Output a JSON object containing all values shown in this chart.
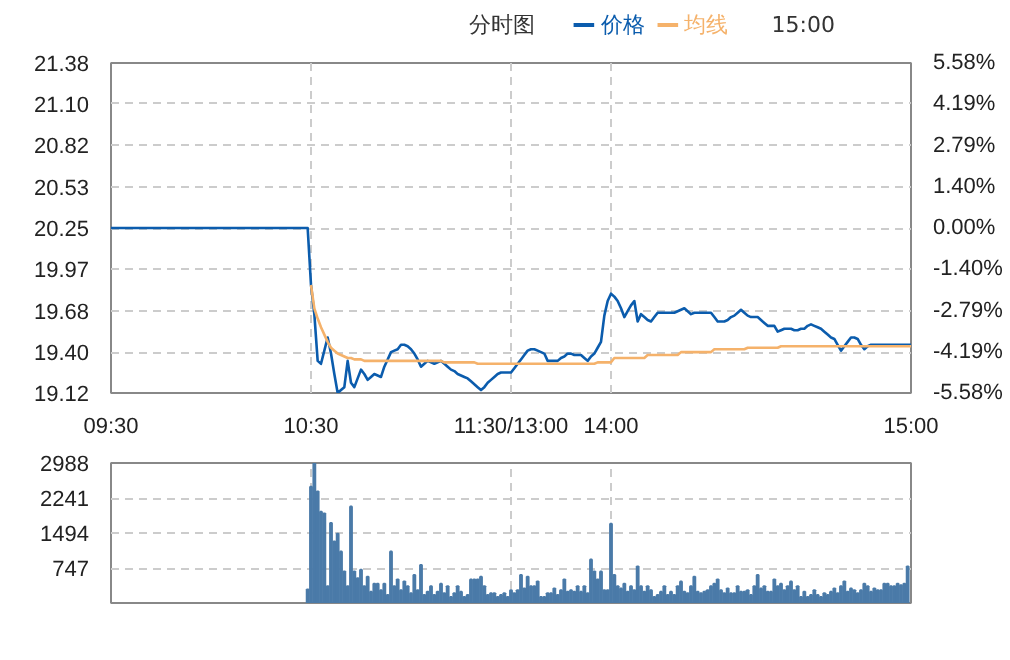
{
  "chart_data": [
    {
      "type": "line",
      "title": "分时图",
      "annotations": [
        "15:00"
      ],
      "legend": "top",
      "grid": true,
      "categories": [
        "09:30",
        null,
        null,
        null,
        null,
        null,
        null,
        null,
        null,
        null,
        null,
        null,
        null,
        null,
        null,
        null,
        null,
        null,
        null,
        null,
        null,
        null,
        null,
        null,
        null,
        null,
        null,
        null,
        null,
        null,
        null,
        null,
        null,
        null,
        null,
        null,
        null,
        null,
        null,
        null,
        null,
        null,
        null,
        null,
        null,
        null,
        null,
        null,
        null,
        null,
        null,
        null,
        null,
        null,
        null,
        null,
        null,
        null,
        null,
        null,
        "10:30",
        null,
        null,
        null,
        null,
        null,
        null,
        null,
        null,
        null,
        null,
        null,
        null,
        null,
        null,
        null,
        null,
        null,
        null,
        null,
        null,
        null,
        null,
        null,
        null,
        null,
        null,
        null,
        null,
        null,
        null,
        null,
        null,
        null,
        null,
        null,
        null,
        null,
        null,
        null,
        null,
        null,
        null,
        null,
        null,
        null,
        null,
        null,
        null,
        null,
        null,
        null,
        null,
        null,
        null,
        null,
        null,
        null,
        null,
        null,
        "11:30/13:00",
        null,
        null,
        null,
        null,
        null,
        null,
        null,
        null,
        null,
        null,
        null,
        null,
        null,
        null,
        null,
        null,
        null,
        null,
        null,
        null,
        null,
        null,
        null,
        null,
        null,
        null,
        null,
        null,
        null,
        "14:00",
        null,
        null,
        null,
        null,
        null,
        null,
        null,
        null,
        null,
        null,
        null,
        null,
        null,
        null,
        null,
        null,
        null,
        null,
        null,
        null,
        null,
        null,
        null,
        null,
        null,
        null,
        null,
        null,
        null,
        null,
        null,
        null,
        null,
        null,
        null,
        null,
        null,
        null,
        null,
        null,
        null,
        null,
        null,
        null,
        null,
        null,
        null,
        null,
        null,
        null,
        null,
        null,
        null,
        null,
        null,
        null,
        null,
        null,
        null,
        null,
        null,
        null,
        null,
        null,
        null,
        null,
        null,
        null,
        null,
        null,
        null,
        null,
        null,
        null,
        null,
        null,
        null,
        null,
        null,
        null,
        null,
        null,
        null,
        null,
        null,
        null,
        null,
        null,
        null,
        "15:00"
      ],
      "ylim": [
        19.12,
        21.38
      ],
      "yticks": [
        {
          "value": 19.12,
          "label": "19.12"
        },
        {
          "value": 19.4,
          "label": "19.40"
        },
        19.68,
        19.97,
        20.25,
        20.53,
        20.82,
        {
          "value": 21.1,
          "label": "21.10"
        },
        21.38
      ],
      "y2lim": [
        -5.58,
        5.58
      ],
      "y2ticks": [
        {
          "value": -5.58,
          "label": "-5.58%"
        },
        {
          "value": -4.19,
          "label": "-4.19%"
        },
        {
          "value": -2.79,
          "label": "-2.79%"
        },
        {
          "value": -1.4,
          "label": "-1.40%"
        },
        {
          "value": 0,
          "label": "0.00%"
        },
        {
          "value": 1.4,
          "label": "1.40%"
        },
        {
          "value": 2.79,
          "label": "2.79%"
        },
        {
          "value": 4.19,
          "label": "4.19%"
        },
        {
          "value": 5.58,
          "label": "5.58%"
        }
      ],
      "series": [
        {
          "name": "价格",
          "color": "#0b5cad",
          "values": [
            20.25,
            20.25,
            20.25,
            20.25,
            20.25,
            20.25,
            20.25,
            20.25,
            20.25,
            20.25,
            20.25,
            20.25,
            20.25,
            20.25,
            20.25,
            20.25,
            20.25,
            20.25,
            20.25,
            20.25,
            20.25,
            20.25,
            20.25,
            20.25,
            20.25,
            20.25,
            20.25,
            20.25,
            20.25,
            20.25,
            20.25,
            20.25,
            20.25,
            20.25,
            20.25,
            20.25,
            20.25,
            20.25,
            20.25,
            20.25,
            20.25,
            20.25,
            20.25,
            20.25,
            20.25,
            20.25,
            20.25,
            20.25,
            20.25,
            20.25,
            20.25,
            20.25,
            20.25,
            20.25,
            20.25,
            20.25,
            20.25,
            20.25,
            20.25,
            20.25,
            19.86,
            19.66,
            19.34,
            19.32,
            19.41,
            19.5,
            19.39,
            19.25,
            19.12,
            19.14,
            19.16,
            19.34,
            19.19,
            19.16,
            19.22,
            19.28,
            19.25,
            19.21,
            19.23,
            19.25,
            19.24,
            19.23,
            19.3,
            19.35,
            19.4,
            19.41,
            19.42,
            19.45,
            19.45,
            19.44,
            19.42,
            19.39,
            19.35,
            19.3,
            19.32,
            19.34,
            19.33,
            19.32,
            19.33,
            19.34,
            19.32,
            19.3,
            19.28,
            19.27,
            19.25,
            19.24,
            19.23,
            19.22,
            19.2,
            19.18,
            19.16,
            19.14,
            19.16,
            19.19,
            19.21,
            19.23,
            19.25,
            19.26,
            19.26,
            19.26,
            19.26,
            19.29,
            19.32,
            19.35,
            19.38,
            19.41,
            19.42,
            19.42,
            19.41,
            19.4,
            19.39,
            19.34,
            19.34,
            19.34,
            19.34,
            19.36,
            19.37,
            19.39,
            19.39,
            19.38,
            19.38,
            19.38,
            19.36,
            19.34,
            19.37,
            19.39,
            19.43,
            19.47,
            19.65,
            19.75,
            19.8,
            19.78,
            19.75,
            19.7,
            19.64,
            19.68,
            19.72,
            19.75,
            19.61,
            19.66,
            19.64,
            19.62,
            19.61,
            19.64,
            19.67,
            19.67,
            19.67,
            19.67,
            19.67,
            19.67,
            19.68,
            19.69,
            19.7,
            19.68,
            19.66,
            19.67,
            19.67,
            19.67,
            19.67,
            19.67,
            19.67,
            19.64,
            19.61,
            19.61,
            19.61,
            19.62,
            19.64,
            19.65,
            19.67,
            19.69,
            19.67,
            19.65,
            19.64,
            19.64,
            19.64,
            19.62,
            19.6,
            19.58,
            19.58,
            19.58,
            19.54,
            19.55,
            19.56,
            19.56,
            19.56,
            19.55,
            19.55,
            19.56,
            19.56,
            19.58,
            19.59,
            19.58,
            19.57,
            19.56,
            19.54,
            19.52,
            19.5,
            19.49,
            19.45,
            19.41,
            19.44,
            19.47,
            19.5,
            19.5,
            19.49,
            19.45,
            19.42,
            19.44,
            19.45,
            19.45,
            19.45,
            19.45,
            19.45,
            19.45,
            19.45,
            19.45,
            19.45,
            19.45,
            19.45,
            19.45,
            19.45
          ]
        },
        {
          "name": "均线",
          "color": "#f5b26b",
          "values": [
            null,
            null,
            null,
            null,
            null,
            null,
            null,
            null,
            null,
            null,
            null,
            null,
            null,
            null,
            null,
            null,
            null,
            null,
            null,
            null,
            null,
            null,
            null,
            null,
            null,
            null,
            null,
            null,
            null,
            null,
            null,
            null,
            null,
            null,
            null,
            null,
            null,
            null,
            null,
            null,
            null,
            null,
            null,
            null,
            null,
            null,
            null,
            null,
            null,
            null,
            null,
            null,
            null,
            null,
            null,
            null,
            null,
            null,
            null,
            null,
            19.86,
            19.7,
            19.63,
            19.57,
            19.52,
            19.47,
            19.43,
            19.41,
            19.39,
            19.38,
            19.37,
            19.36,
            19.36,
            19.35,
            19.35,
            19.35,
            19.34,
            19.34,
            19.34,
            19.34,
            19.34,
            19.34,
            19.34,
            19.34,
            19.34,
            19.34,
            19.34,
            19.34,
            19.34,
            19.34,
            19.34,
            19.34,
            19.34,
            19.34,
            19.34,
            19.34,
            19.34,
            19.34,
            19.34,
            19.34,
            19.33,
            19.33,
            19.33,
            19.33,
            19.33,
            19.33,
            19.33,
            19.33,
            19.33,
            19.33,
            19.32,
            19.32,
            19.32,
            19.32,
            19.32,
            19.32,
            19.32,
            19.32,
            19.32,
            19.32,
            19.32,
            19.32,
            19.32,
            19.32,
            19.32,
            19.32,
            19.32,
            19.32,
            19.32,
            19.32,
            19.32,
            19.32,
            19.32,
            19.32,
            19.32,
            19.32,
            19.32,
            19.32,
            19.32,
            19.32,
            19.32,
            19.32,
            19.32,
            19.32,
            19.32,
            19.32,
            19.33,
            19.33,
            19.33,
            19.33,
            19.33,
            19.36,
            19.36,
            19.36,
            19.36,
            19.36,
            19.36,
            19.36,
            19.36,
            19.36,
            19.36,
            19.38,
            19.38,
            19.38,
            19.38,
            19.38,
            19.38,
            19.38,
            19.38,
            19.38,
            19.38,
            19.4,
            19.4,
            19.4,
            19.4,
            19.4,
            19.4,
            19.4,
            19.4,
            19.4,
            19.4,
            19.42,
            19.42,
            19.42,
            19.42,
            19.42,
            19.42,
            19.42,
            19.42,
            19.42,
            19.42,
            19.43,
            19.43,
            19.43,
            19.43,
            19.43,
            19.43,
            19.43,
            19.43,
            19.43,
            19.43,
            19.44,
            19.44,
            19.44,
            19.44,
            19.44,
            19.44,
            19.44,
            19.44,
            19.44,
            19.44,
            19.44,
            19.44,
            19.44,
            19.44,
            19.44,
            19.44,
            19.44,
            19.44,
            19.44,
            19.44,
            19.44,
            19.44,
            19.44,
            19.44,
            19.44,
            19.44,
            19.44,
            19.44,
            19.44,
            19.44,
            19.44,
            19.44,
            19.44,
            19.44,
            19.44,
            19.44,
            19.44,
            19.44,
            19.44,
            19.44
          ]
        }
      ]
    },
    {
      "type": "bar",
      "grid": true,
      "tick_labels": "y",
      "color": "#4a7aa8",
      "categories": [
        null,
        null,
        null,
        null,
        null,
        null,
        null,
        null,
        null,
        null,
        null,
        null,
        null,
        null,
        null,
        null,
        null,
        null,
        null,
        null,
        null,
        null,
        null,
        null,
        null,
        null,
        null,
        null,
        null,
        null,
        null,
        null,
        null,
        null,
        null,
        null,
        null,
        null,
        null,
        null,
        null,
        null,
        null,
        null,
        null,
        null,
        null,
        null,
        null,
        null,
        null,
        null,
        null,
        null,
        null,
        null,
        null,
        null,
        null,
        null,
        null,
        null,
        null,
        null,
        null,
        null,
        null,
        null,
        null,
        null,
        null,
        null,
        null,
        null,
        null,
        null,
        null,
        null,
        null,
        null,
        null,
        null,
        null,
        null,
        null,
        null,
        null,
        null,
        null,
        null,
        null,
        null,
        null,
        null,
        null,
        null,
        null,
        null,
        null,
        null,
        null,
        null,
        null,
        null,
        null,
        null,
        null,
        null,
        null,
        null,
        null,
        null,
        null,
        null,
        null,
        null,
        null,
        null,
        null,
        null,
        null,
        null,
        null,
        null,
        null,
        null,
        null,
        null,
        null,
        null,
        null,
        null,
        null,
        null,
        null,
        null,
        null,
        null,
        null,
        null,
        null,
        null,
        null,
        null,
        null,
        null,
        null,
        null,
        null,
        null,
        null,
        null,
        null,
        null,
        null,
        null,
        null,
        null,
        null,
        null,
        null,
        null,
        null,
        null,
        null,
        null,
        null,
        null,
        null,
        null,
        null,
        null,
        null,
        null,
        null,
        null,
        null,
        null,
        null,
        null,
        null,
        null,
        null,
        null,
        null,
        null,
        null,
        null,
        null,
        null,
        null,
        null,
        null,
        null,
        null,
        null,
        null,
        null,
        null,
        null,
        null,
        null,
        null,
        null,
        null,
        null,
        null,
        null,
        null,
        null,
        null,
        null,
        null,
        null,
        null,
        null,
        null,
        null,
        null,
        null,
        null,
        null,
        null,
        null,
        null,
        null,
        null,
        null,
        null,
        null,
        null,
        null,
        null,
        null,
        null,
        null,
        null,
        null,
        null,
        null,
        null
      ],
      "ylim": [
        0,
        2988
      ],
      "yticks": [
        747,
        1494,
        2241,
        2988
      ],
      "values": [
        null,
        null,
        null,
        null,
        null,
        null,
        null,
        null,
        null,
        null,
        null,
        null,
        null,
        null,
        null,
        null,
        null,
        null,
        null,
        null,
        null,
        null,
        null,
        null,
        null,
        null,
        null,
        null,
        null,
        null,
        null,
        null,
        null,
        null,
        null,
        null,
        null,
        null,
        null,
        null,
        null,
        null,
        null,
        null,
        null,
        null,
        null,
        null,
        null,
        null,
        null,
        null,
        null,
        null,
        null,
        null,
        null,
        null,
        null,
        290,
        2480,
        2988,
        2380,
        1950,
        1910,
        360,
        1710,
        1310,
        1480,
        1100,
        670,
        360,
        2060,
        670,
        530,
        710,
        360,
        560,
        240,
        410,
        410,
        270,
        410,
        170,
        1100,
        360,
        500,
        270,
        460,
        360,
        210,
        600,
        270,
        810,
        170,
        240,
        360,
        170,
        240,
        410,
        210,
        360,
        130,
        210,
        360,
        240,
        130,
        170,
        500,
        500,
        500,
        560,
        360,
        170,
        210,
        210,
        130,
        170,
        210,
        130,
        270,
        210,
        270,
        600,
        310,
        560,
        360,
        360,
        460,
        130,
        130,
        210,
        210,
        310,
        170,
        270,
        500,
        240,
        270,
        240,
        360,
        240,
        360,
        210,
        930,
        670,
        500,
        670,
        270,
        270,
        1690,
        600,
        360,
        310,
        410,
        240,
        360,
        270,
        780,
        360,
        240,
        360,
        270,
        130,
        170,
        240,
        360,
        170,
        240,
        170,
        360,
        460,
        240,
        210,
        360,
        560,
        240,
        210,
        240,
        270,
        360,
        410,
        500,
        270,
        210,
        310,
        210,
        210,
        360,
        240,
        240,
        270,
        170,
        360,
        600,
        310,
        360,
        240,
        240,
        500,
        360,
        410,
        270,
        360,
        460,
        270,
        360,
        130,
        240,
        130,
        170,
        270,
        170,
        130,
        210,
        170,
        240,
        310,
        210,
        360,
        460,
        240,
        310,
        270,
        210,
        270,
        410,
        360,
        240,
        310,
        270,
        270,
        410,
        410,
        360,
        360,
        410,
        380,
        410,
        780,
        null
      ]
    }
  ]
}
